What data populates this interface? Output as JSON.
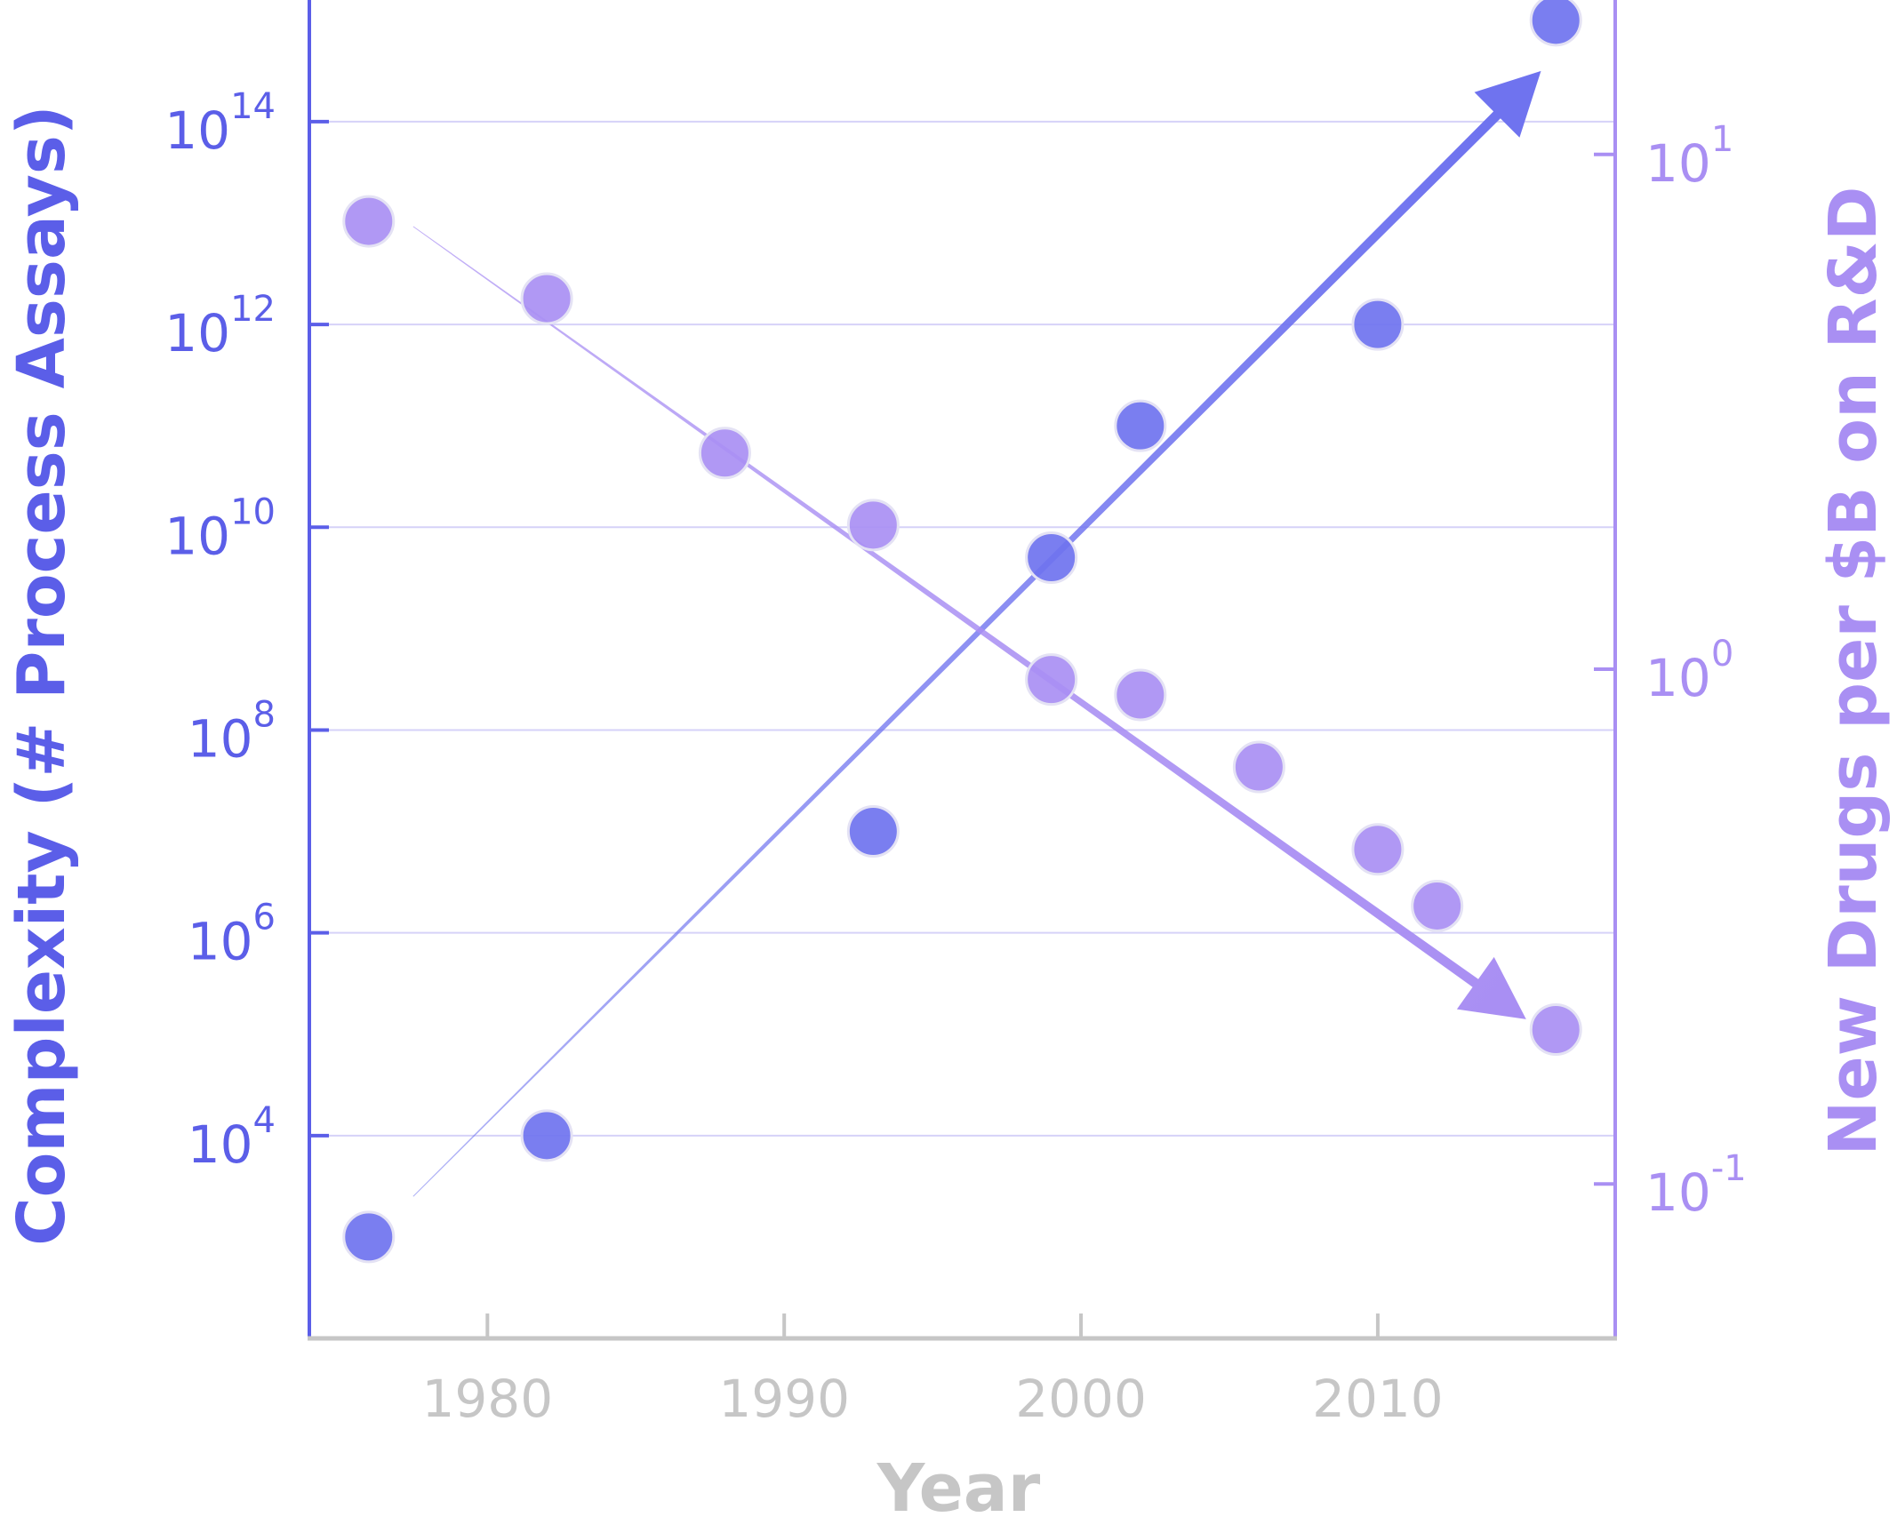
{
  "chart_data": {
    "type": "scatter",
    "title": "",
    "xlabel": "Year",
    "ylabel_left": "Complexity (# Process Assays)",
    "ylabel_right": "New Drugs per $B on R&D",
    "xlim": [
      1974,
      2018
    ],
    "x_ticks": [
      1980,
      1990,
      2000,
      2010
    ],
    "x_tick_labels": [
      "1980",
      "1990",
      "2000",
      "2010"
    ],
    "y_left_scale": "log10",
    "y_left_exp_range": [
      2.0,
      15.2
    ],
    "y_left_ticks": [
      {
        "base": "10",
        "exp": "4"
      },
      {
        "base": "10",
        "exp": "6"
      },
      {
        "base": "10",
        "exp": "8"
      },
      {
        "base": "10",
        "exp": "10"
      },
      {
        "base": "10",
        "exp": "12"
      },
      {
        "base": "10",
        "exp": "14"
      }
    ],
    "y_right_scale": "log10",
    "y_right_exp_range": [
      -1.3,
      1.3
    ],
    "y_right_ticks": [
      {
        "base": "10",
        "exp": "-1"
      },
      {
        "base": "10",
        "exp": "0"
      },
      {
        "base": "10",
        "exp": "1"
      }
    ],
    "grid": true,
    "colors": {
      "complexity": "#6f73ef",
      "drugs": "#a98ff3",
      "tick_text_left": "#5b5ee8",
      "tick_text_right": "#a98ff3",
      "x_axis": "#c6c6c6",
      "grid": "#d6d2f8"
    },
    "series": [
      {
        "name": "Complexity (# Process Assays)",
        "axis": "left",
        "x": [
          1976,
          1982,
          1993,
          1999,
          2002,
          2010,
          2016
        ],
        "y_exp": [
          3.0,
          4.0,
          7.0,
          9.7,
          11.0,
          12.0,
          15.0
        ]
      },
      {
        "name": "New Drugs per $B on R&D",
        "axis": "right",
        "x": [
          1976,
          1982,
          1988,
          1993,
          1999,
          2002,
          2006,
          2010,
          2012,
          2016
        ],
        "y_exp": [
          0.87,
          0.72,
          0.42,
          0.28,
          -0.02,
          -0.05,
          -0.19,
          -0.35,
          -0.46,
          -0.7
        ]
      }
    ],
    "trends": [
      {
        "name": "complexity-trend",
        "axis": "left",
        "from": [
          1977.5,
          3.4
        ],
        "to": [
          2015.5,
          14.5
        ]
      },
      {
        "name": "drugs-trend",
        "axis": "right",
        "from": [
          1977.5,
          0.86
        ],
        "to": [
          2015,
          -0.68
        ]
      }
    ]
  }
}
